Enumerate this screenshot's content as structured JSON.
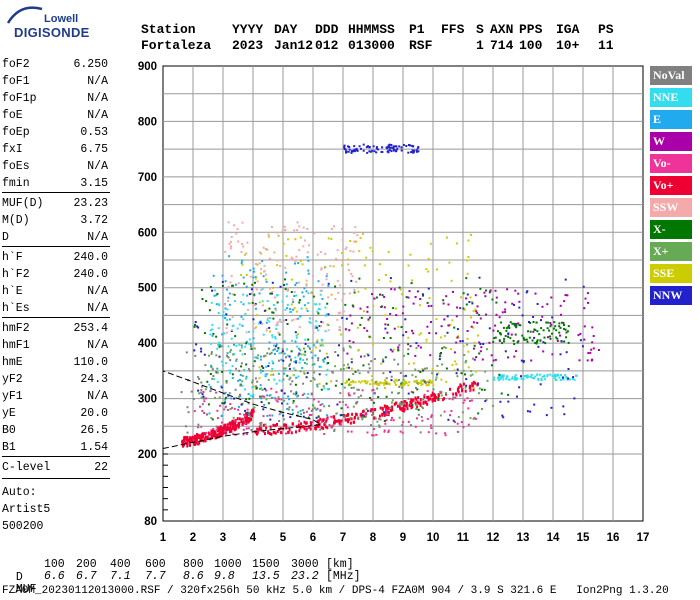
{
  "logo": {
    "top": "Lowell",
    "main": "DIGISONDE"
  },
  "header": {
    "row1": [
      "Station",
      "YYYY",
      "DAY",
      "DDD",
      "HHMMSS",
      "P1",
      "FFS",
      "S",
      "AXN",
      "PPS",
      "IGA",
      "PS"
    ],
    "row2": [
      "Fortaleza",
      "2023",
      "Jan12",
      "012",
      "013000",
      "RSF",
      "1",
      "714",
      "100",
      "10+",
      "11"
    ]
  },
  "params": [
    {
      "name": "foF2",
      "value": "6.250"
    },
    {
      "name": "foF1",
      "value": "N/A"
    },
    {
      "name": "foF1p",
      "value": "N/A"
    },
    {
      "name": "foE",
      "value": "N/A"
    },
    {
      "name": "foEp",
      "value": "0.53"
    },
    {
      "name": "fxI",
      "value": "6.75"
    },
    {
      "name": "foEs",
      "value": "N/A"
    },
    {
      "name": "fmin",
      "value": "3.15"
    },
    {
      "name": "MUF(D)",
      "value": "23.23"
    },
    {
      "name": "M(D)",
      "value": "3.72"
    },
    {
      "name": "D",
      "value": "N/A"
    },
    {
      "name": "h`F",
      "value": "240.0"
    },
    {
      "name": "h`F2",
      "value": "240.0"
    },
    {
      "name": "h`E",
      "value": "N/A"
    },
    {
      "name": "h`Es",
      "value": "N/A"
    },
    {
      "name": "hmF2",
      "value": "253.4"
    },
    {
      "name": "hmF1",
      "value": "N/A"
    },
    {
      "name": "hmE",
      "value": "110.0"
    },
    {
      "name": "yF2",
      "value": "24.3"
    },
    {
      "name": "yF1",
      "value": "N/A"
    },
    {
      "name": "yE",
      "value": "20.0"
    },
    {
      "name": "B0",
      "value": "26.5"
    },
    {
      "name": "B1",
      "value": "1.54"
    }
  ],
  "clevel": {
    "name": "C-level",
    "value": "22"
  },
  "auto": [
    "Auto:",
    "Artist5",
    "500200"
  ],
  "footer": {
    "d_label": "D",
    "d_values": [
      "100",
      "200",
      "400",
      "600",
      "800",
      "1000",
      "1500",
      "3000"
    ],
    "d_unit": "[km]",
    "muf_label": "MUF",
    "muf_values": [
      "6.6",
      "6.7",
      "7.1",
      "7.7",
      "8.6",
      "9.8",
      "13.5",
      "23.2"
    ],
    "muf_unit": "[MHz]",
    "file_line": "FZA0M_20230112013000.RSF / 320fx256h 50 kHz 5.0 km / DPS-4 FZA0M 904 / 3.9 S 321.6 E   Ion2Png 1.3.20"
  },
  "legend": [
    {
      "label": "NoVal",
      "color": "#808080"
    },
    {
      "label": "NNE",
      "color": "#33ddee"
    },
    {
      "label": "E",
      "color": "#22aaee"
    },
    {
      "label": "W",
      "color": "#aa00aa"
    },
    {
      "label": "Vo-",
      "color": "#ee3399"
    },
    {
      "label": "Vo+",
      "color": "#ee0033"
    },
    {
      "label": "SSW",
      "color": "#f4aaaa"
    },
    {
      "label": "X-",
      "color": "#007700"
    },
    {
      "label": "X+",
      "color": "#66aa55"
    },
    {
      "label": "SSE",
      "color": "#cccc00"
    },
    {
      "label": "NNW",
      "color": "#2222cc"
    }
  ],
  "chart_data": {
    "type": "scatter",
    "x_ticks": [
      1,
      2,
      3,
      4,
      5,
      6,
      7,
      8,
      9,
      10,
      11,
      12,
      13,
      14,
      15,
      16,
      17
    ],
    "y_ticks": [
      80,
      200,
      300,
      400,
      500,
      600,
      700,
      800,
      900
    ],
    "xlim": [
      1,
      17
    ],
    "ylim": [
      80,
      900
    ],
    "y_scale": "piecewise (80-200 compressed)",
    "grid": true,
    "legend_placement": "right",
    "clusters": [
      {
        "color": "#ee0033",
        "x": [
          4.0,
          11.5
        ],
        "y": [
          245,
          330
        ],
        "kind": "trace"
      },
      {
        "color": "#ee0033",
        "x": [
          1.6,
          4.0
        ],
        "y": [
          225,
          275
        ],
        "kind": "trace"
      },
      {
        "color": "#ee3399",
        "x": [
          2.0,
          11.5
        ],
        "y": [
          235,
          320
        ],
        "kind": "cloud"
      },
      {
        "color": "#22aaee",
        "x": [
          2.5,
          6.5
        ],
        "y": [
          270,
          560
        ],
        "kind": "cloud"
      },
      {
        "color": "#33ddee",
        "x": [
          2.5,
          6.5
        ],
        "y": [
          300,
          500
        ],
        "kind": "cloud"
      },
      {
        "color": "#33ddee",
        "x": [
          12.0,
          14.8
        ],
        "y": [
          335,
          345
        ],
        "kind": "band"
      },
      {
        "color": "#cccc00",
        "x": [
          3.5,
          11.5
        ],
        "y": [
          320,
          600
        ],
        "kind": "cloud"
      },
      {
        "color": "#cccc00",
        "x": [
          7.0,
          10.0
        ],
        "y": [
          325,
          335
        ],
        "kind": "band"
      },
      {
        "color": "#aa00aa",
        "x": [
          7.0,
          15.5
        ],
        "y": [
          370,
          500
        ],
        "kind": "cloud"
      },
      {
        "color": "#007700",
        "x": [
          2.0,
          12.5
        ],
        "y": [
          260,
          520
        ],
        "kind": "cloud"
      },
      {
        "color": "#007700",
        "x": [
          12.0,
          14.5
        ],
        "y": [
          400,
          440
        ],
        "kind": "band"
      },
      {
        "color": "#66aa55",
        "x": [
          2.0,
          12.0
        ],
        "y": [
          260,
          400
        ],
        "kind": "cloud"
      },
      {
        "color": "#2222cc",
        "x": [
          7.0,
          9.5
        ],
        "y": [
          745,
          760
        ],
        "kind": "band"
      },
      {
        "color": "#2222cc",
        "x": [
          2.0,
          15.0
        ],
        "y": [
          260,
          520
        ],
        "kind": "cloud"
      },
      {
        "color": "#808080",
        "x": [
          1.5,
          10.0
        ],
        "y": [
          240,
          400
        ],
        "kind": "cloud"
      },
      {
        "color": "#f4aaaa",
        "x": [
          3.0,
          7.5
        ],
        "y": [
          420,
          620
        ],
        "kind": "cloud"
      }
    ],
    "model_profile": [
      [
        1.0,
        210
      ],
      [
        3.0,
        232
      ],
      [
        4.0,
        240
      ],
      [
        5.0,
        246
      ],
      [
        5.8,
        250
      ],
      [
        6.25,
        253
      ],
      [
        6.0,
        262
      ],
      [
        5.0,
        275
      ],
      [
        4.0,
        290
      ],
      [
        3.0,
        310
      ],
      [
        2.0,
        330
      ],
      [
        1.0,
        350
      ]
    ]
  }
}
